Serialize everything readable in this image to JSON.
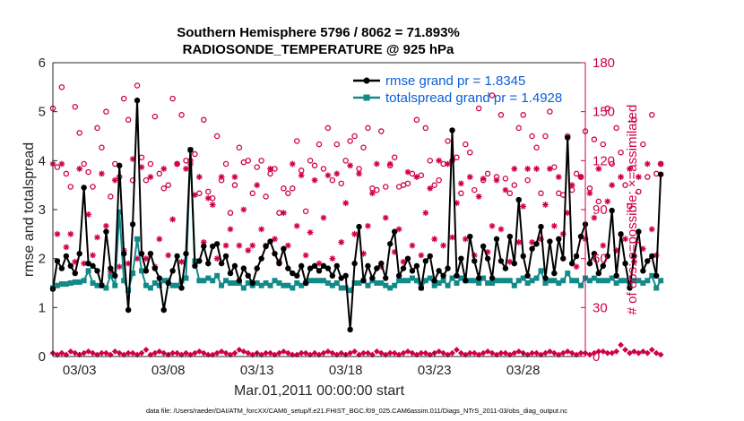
{
  "colors": {
    "rmse": "#000000",
    "spread": "#138a8a",
    "obs": "#d0004c",
    "legend_text": "#0b5fd8",
    "axis": "#262626"
  },
  "chart_data": {
    "type": "line",
    "title_line1": "Southern Hemisphere 5796 / 8062 = 71.893%",
    "title_line2": "RADIOSONDE_TEMPERATURE @ 925 hPa",
    "xlabel": "Mar.01,2011 00:00:00 start",
    "ylabel_left": "rmse and totalspread",
    "ylabel_right": "# of obs: o=possible; ×=assimilated",
    "footnote": "data file: /Users/raeder/DAI/ATM_forcXX/CAM6_setup/f.e21.FHIST_BGC.f09_025.CAM6assim.011/Diags_NTrS_2011-03/obs_diag_output.nc",
    "x_ticks": [
      {
        "day": 3,
        "label": "03/03"
      },
      {
        "day": 8,
        "label": "03/08"
      },
      {
        "day": 13,
        "label": "03/13"
      },
      {
        "day": 18,
        "label": "03/18"
      },
      {
        "day": 23,
        "label": "03/23"
      },
      {
        "day": 28,
        "label": "03/28"
      }
    ],
    "xlim": [
      1.5,
      31.5
    ],
    "ylim_left": [
      0,
      6
    ],
    "yticks_left": [
      "0",
      "1",
      "2",
      "3",
      "4",
      "5",
      "6"
    ],
    "ylim_right": [
      0,
      180
    ],
    "yticks_right": [
      "0",
      "30",
      "60",
      "90",
      "120",
      "150",
      "180"
    ],
    "legend": {
      "position": "top-right",
      "entries": [
        "rmse grand pr = 1.8345",
        "totalspread grand pr = 1.4928"
      ]
    },
    "time_start_day": 1.5,
    "time_step_day": 0.25,
    "series": [
      {
        "name": "rmse",
        "values": [
          1.38,
          1.95,
          1.8,
          2.05,
          1.85,
          1.7,
          2.1,
          3.45,
          1.9,
          1.85,
          1.75,
          1.45,
          2.55,
          1.8,
          1.65,
          3.9,
          2.1,
          0.95,
          2.7,
          5.23,
          2.1,
          1.75,
          2.1,
          1.8,
          1.6,
          0.95,
          1.5,
          1.75,
          2.05,
          1.4,
          2.1,
          4.22,
          1.85,
          1.95,
          2.25,
          1.9,
          2.25,
          2.3,
          1.9,
          2.05,
          1.7,
          1.85,
          1.55,
          1.8,
          1.65,
          1.5,
          1.8,
          2.0,
          2.25,
          2.35,
          2.1,
          1.9,
          2.2,
          1.8,
          1.7,
          1.65,
          1.85,
          1.5,
          1.8,
          1.85,
          1.75,
          1.85,
          1.8,
          1.65,
          1.85,
          1.6,
          1.65,
          0.55,
          1.9,
          2.65,
          1.55,
          1.85,
          1.6,
          1.8,
          1.9,
          1.6,
          2.3,
          2.55,
          1.65,
          1.8,
          2.0,
          1.75,
          1.85,
          1.4,
          1.95,
          2.05,
          1.55,
          1.75,
          1.65,
          1.8,
          4.62,
          1.65,
          2.0,
          1.55,
          2.45,
          1.95,
          1.6,
          2.25,
          2.0,
          1.6,
          2.4,
          1.95,
          1.8,
          2.45,
          1.9,
          3.2,
          2.05,
          1.65,
          2.2,
          2.3,
          2.65,
          1.6,
          2.35,
          1.7,
          2.4,
          2.0,
          4.47,
          1.9,
          2.05,
          2.45,
          2.7,
          1.9,
          2.1,
          1.7,
          1.85,
          2.05,
          2.98,
          1.65,
          2.5,
          1.9,
          1.4,
          2.05,
          2.55,
          1.75,
          1.95,
          2.05,
          1.65,
          3.72
        ],
        "marker": "filled-circle"
      },
      {
        "name": "totalspread",
        "values": [
          1.4,
          1.45,
          1.48,
          1.48,
          1.5,
          1.52,
          1.52,
          1.55,
          1.75,
          1.5,
          1.45,
          1.45,
          1.4,
          1.65,
          1.45,
          2.95,
          1.55,
          1.35,
          1.7,
          2.4,
          1.75,
          1.45,
          1.4,
          1.5,
          1.45,
          1.55,
          1.55,
          1.45,
          1.45,
          1.55,
          1.6,
          4.22,
          1.95,
          1.55,
          1.55,
          1.6,
          1.55,
          1.65,
          1.45,
          1.55,
          1.5,
          1.5,
          1.5,
          1.4,
          1.5,
          1.45,
          1.5,
          1.45,
          1.5,
          1.45,
          1.55,
          1.5,
          1.45,
          1.45,
          1.4,
          1.5,
          1.45,
          1.5,
          1.55,
          1.55,
          1.55,
          1.55,
          1.5,
          1.45,
          1.5,
          1.4,
          1.4,
          1.35,
          1.5,
          1.5,
          1.55,
          1.45,
          1.55,
          1.5,
          1.5,
          1.45,
          1.4,
          1.45,
          1.55,
          1.55,
          1.55,
          1.6,
          1.55,
          1.4,
          1.55,
          1.6,
          1.45,
          1.5,
          1.55,
          1.45,
          1.6,
          1.5,
          1.6,
          1.55,
          1.55,
          1.55,
          1.5,
          1.6,
          1.5,
          1.5,
          1.55,
          1.55,
          1.55,
          1.55,
          1.45,
          1.55,
          1.6,
          1.5,
          1.55,
          1.6,
          1.75,
          1.5,
          1.55,
          1.55,
          1.5,
          1.55,
          1.7,
          1.55,
          1.55,
          1.45,
          1.6,
          1.55,
          1.6,
          1.55,
          1.55,
          1.55,
          1.6,
          1.5,
          1.55,
          1.55,
          1.45,
          1.55,
          1.55,
          1.5,
          1.55,
          1.65,
          1.4,
          1.55
        ],
        "marker": "filled-square"
      },
      {
        "name": "obs_possible",
        "axis": "right",
        "values": [
          152,
          116,
          165,
          112,
          104,
          153,
          137,
          118,
          113,
          104,
          140,
          128,
          150,
          98,
          118,
          110,
          158,
          145,
          108,
          166,
          122,
          108,
          118,
          147,
          112,
          103,
          105,
          158,
          118,
          148,
          120,
          120,
          124,
          100,
          145,
          101,
          97,
          135,
          108,
          118,
          88,
          105,
          128,
          119,
          120,
          100,
          116,
          120,
          98,
          112,
          115,
          88,
          103,
          100,
          103,
          132,
          114,
          89,
          120,
          117,
          130,
          115,
          140,
          108,
          130,
          106,
          120,
          132,
          135,
          115,
          128,
          140,
          103,
          102,
          138,
          104,
          117,
          122,
          104,
          105,
          106,
          112,
          145,
          111,
          140,
          120,
          105,
          108,
          118,
          132,
          120,
          122,
          100,
          130,
          125,
          102,
          152,
          108,
          112,
          160,
          110,
          148,
          109,
          100,
          105,
          140,
          148,
          108,
          135,
          128,
          100,
          135,
          150,
          116,
          100,
          99,
          135,
          102,
          112,
          110,
          138,
          103,
          133,
          95,
          130,
          152,
          118,
          140,
          125,
          105,
          92,
          145,
          101,
          130,
          110,
          148,
          112,
          118
        ],
        "marker": "open-circle"
      },
      {
        "name": "obs_assimilated",
        "axis": "right",
        "values": [
          118,
          75,
          118,
          67,
          75,
          58,
          115,
          57,
          87,
          62,
          73,
          112,
          80,
          52,
          108,
          55,
          65,
          57,
          121,
          60,
          116,
          60,
          110,
          55,
          72,
          115,
          62,
          84,
          118,
          58,
          115,
          118,
          99,
          110,
          70,
          97,
          93,
          60,
          110,
          68,
          78,
          110,
          68,
          90,
          65,
          68,
          105,
          78,
          68,
          115,
          72,
          58,
          88,
          68,
          118,
          80,
          111,
          62,
          76,
          108,
          57,
          85,
          111,
          60,
          112,
          70,
          94,
          117,
          75,
          112,
          63,
          80,
          100,
          118,
          55,
          85,
          118,
          64,
          78,
          58,
          113,
          68,
          110,
          62,
          88,
          103,
          72,
          120,
          68,
          118,
          73,
          94,
          106,
          72,
          110,
          62,
          98,
          109,
          64,
          80,
          108,
          78,
          102,
          58,
          115,
          70,
          92,
          115,
          70,
          115,
          72,
          93,
          115,
          80,
          110,
          75,
          88,
          105,
          55,
          110,
          72,
          100,
          85,
          115,
          68,
          95,
          105,
          65,
          110,
          72,
          115,
          58,
          110,
          66,
          118,
          78,
          62,
          118
        ],
        "marker": "asterisk"
      },
      {
        "name": "obs_rejected",
        "axis": "right",
        "values": [
          1,
          0,
          1,
          0,
          2,
          1,
          0,
          1,
          2,
          1,
          0,
          1,
          1,
          0,
          2,
          1,
          0,
          1,
          1,
          0,
          1,
          3,
          0,
          1,
          2,
          1,
          0,
          1,
          1,
          0,
          1,
          0,
          1,
          2,
          1,
          0,
          0,
          1,
          2,
          1,
          0,
          1,
          3,
          2,
          1,
          0,
          1,
          0,
          1,
          1,
          0,
          1,
          2,
          1,
          0,
          0,
          1,
          1,
          0,
          1,
          0,
          1,
          2,
          1,
          0,
          1,
          0,
          1,
          2,
          0,
          1,
          1,
          0,
          2,
          1,
          0,
          1,
          1,
          0,
          1,
          2,
          1,
          0,
          1,
          1,
          0,
          1,
          2,
          1,
          0,
          1,
          3,
          1,
          0,
          1,
          1,
          0,
          1,
          2,
          1,
          0,
          1,
          1,
          0,
          1,
          2,
          1,
          0,
          1,
          1,
          0,
          1,
          2,
          1,
          0,
          1,
          2,
          1,
          0,
          1,
          1,
          0,
          1,
          2,
          2,
          1,
          1,
          2,
          6,
          3,
          1,
          2,
          1,
          2,
          1,
          3,
          1,
          0
        ],
        "marker": "diamond"
      }
    ]
  }
}
